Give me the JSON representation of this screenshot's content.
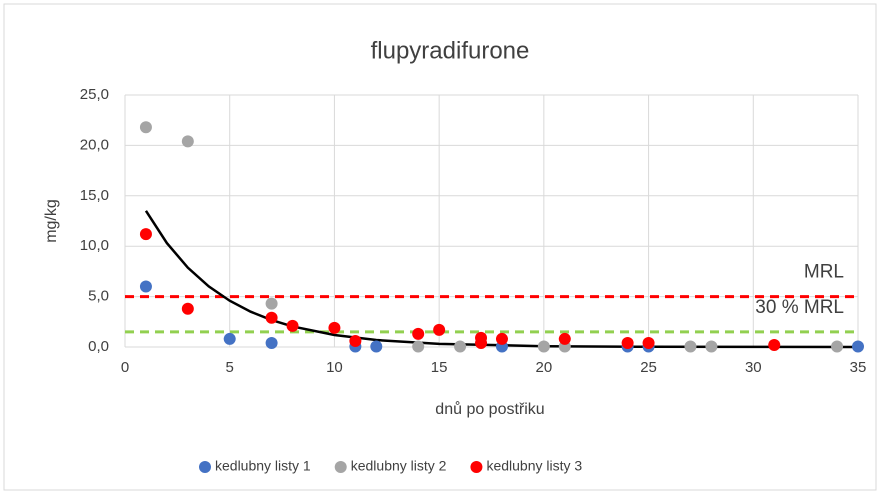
{
  "chart_data": {
    "type": "scatter",
    "title": "flupyradifurone",
    "xlabel": "dnů po postřiku",
    "ylabel": "mg/kg",
    "xlim": [
      0,
      35
    ],
    "xticks": [
      0,
      5,
      10,
      15,
      20,
      25,
      30,
      35
    ],
    "ylim": [
      0,
      25
    ],
    "yticks": [
      {
        "value": 0,
        "label": "0,0"
      },
      {
        "value": 5,
        "label": "5,0"
      },
      {
        "value": 10,
        "label": "10,0"
      },
      {
        "value": 15,
        "label": "15,0"
      },
      {
        "value": 20,
        "label": "20,0"
      },
      {
        "value": 25,
        "label": "25,0"
      }
    ],
    "grid": true,
    "legend": "bottom",
    "series": [
      {
        "name": "kedlubny listy 1",
        "color": "#4472c4",
        "x": [
          1,
          5,
          7,
          11,
          12,
          18,
          24,
          25,
          35
        ],
        "values": [
          6.0,
          0.8,
          0.4,
          0.05,
          0.05,
          0.05,
          0.05,
          0.05,
          0.05
        ]
      },
      {
        "name": "kedlubny listy 2",
        "color": "#a5a5a5",
        "x": [
          1,
          3,
          7,
          14,
          16,
          20,
          21,
          27,
          28,
          34
        ],
        "values": [
          21.8,
          20.4,
          4.3,
          0.05,
          0.05,
          0.05,
          0.05,
          0.05,
          0.05,
          0.05
        ]
      },
      {
        "name": "kedlubny listy 3",
        "color": "#ff0000",
        "x": [
          1,
          3,
          7,
          8,
          10,
          11,
          14,
          15,
          17,
          17,
          18,
          21,
          24,
          25,
          31
        ],
        "values": [
          11.2,
          3.8,
          2.9,
          2.1,
          1.9,
          0.6,
          1.3,
          1.7,
          0.9,
          0.4,
          0.8,
          0.8,
          0.4,
          0.4,
          0.2
        ]
      }
    ],
    "trendline": {
      "color": "#000000",
      "x": [
        1,
        2,
        3,
        4,
        5,
        6,
        7,
        8,
        10,
        12,
        15,
        20,
        25,
        30,
        35
      ],
      "values": [
        13.51,
        10.31,
        7.87,
        6.01,
        4.59,
        3.5,
        2.67,
        2.04,
        1.19,
        0.69,
        0.31,
        0.08,
        0.02,
        0.01,
        0.0
      ]
    },
    "reference_lines": [
      {
        "label": "MRL",
        "value": 5,
        "color": "#ff0000"
      },
      {
        "label": "30 % MRL",
        "value": 1.5,
        "color": "#92d050"
      }
    ]
  }
}
